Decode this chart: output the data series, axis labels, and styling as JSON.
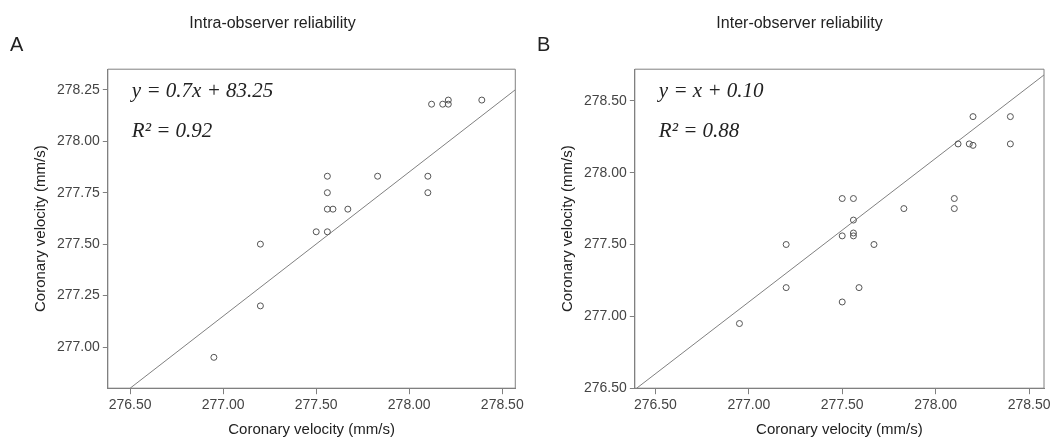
{
  "chart_data": [
    {
      "type": "scatter",
      "title": "Intra-observer reliability",
      "xlabel": "Coronary velocity (mm/s)",
      "ylabel": "Coronary velocity (mm/s)",
      "annotations": [
        "A",
        "y = 0.7x + 83.25",
        "R² = 0.92"
      ],
      "series": [
        {
          "color": "#555555",
          "marker": "circle",
          "x": [
            276.95,
            277.2,
            277.2,
            277.5,
            277.56,
            277.56,
            277.56,
            277.59,
            277.56,
            277.67,
            277.83,
            278.1,
            278.1,
            278.12,
            278.18,
            278.21,
            278.21,
            278.39
          ],
          "values": [
            276.95,
            277.5,
            277.2,
            277.56,
            277.83,
            277.75,
            277.67,
            277.67,
            277.56,
            277.67,
            277.83,
            277.83,
            277.75,
            278.18,
            278.18,
            278.2,
            278.18,
            278.2
          ]
        },
        {
          "type": "line",
          "color": "#808080",
          "marker": "none",
          "x": [
            276.5,
            278.57
          ],
          "values": [
            276.8,
            278.25
          ]
        }
      ],
      "xlim": [
        276.38,
        278.57
      ],
      "ylim": [
        276.8,
        278.35
      ],
      "xticks": [
        {
          "value": 276.5,
          "label": "276.50"
        },
        {
          "value": 277,
          "label": "277.00"
        },
        {
          "value": 277.5,
          "label": "277.50"
        },
        {
          "value": 278,
          "label": "278.00"
        },
        {
          "value": 278.5,
          "label": "278.50"
        }
      ],
      "yticks": [
        {
          "value": 277,
          "label": "277.00"
        },
        277.25,
        {
          "value": 277.5,
          "label": "277.50"
        },
        277.75,
        {
          "value": 278,
          "label": "278.00"
        },
        278.25
      ],
      "grid": false
    },
    {
      "type": "scatter",
      "title": "Inter-observer reliability",
      "xlabel": "Coronary velocity (mm/s)",
      "ylabel": "Coronary velocity (mm/s)",
      "annotations": [
        "B",
        "y = x + 0.10",
        "R² = 0.88"
      ],
      "series": [
        {
          "color": "#555555",
          "marker": "circle",
          "x": [
            276.95,
            277.2,
            277.2,
            277.5,
            277.5,
            277.5,
            277.56,
            277.56,
            277.56,
            277.56,
            277.59,
            277.67,
            277.83,
            278.1,
            278.1,
            278.12,
            278.18,
            278.2,
            278.2,
            278.4,
            278.4
          ],
          "values": [
            276.95,
            277.5,
            277.2,
            277.82,
            277.56,
            277.1,
            277.82,
            277.67,
            277.58,
            277.56,
            277.2,
            277.5,
            277.75,
            277.82,
            277.75,
            278.2,
            278.2,
            278.19,
            278.39,
            278.39,
            278.2
          ]
        },
        {
          "type": "line",
          "color": "#808080",
          "marker": "none",
          "x": [
            276.4,
            278.58
          ],
          "values": [
            276.5,
            278.68
          ]
        }
      ],
      "xlim": [
        276.39,
        278.58
      ],
      "ylim": [
        276.5,
        278.72
      ],
      "xticks": [
        {
          "value": 276.5,
          "label": "276.50"
        },
        {
          "value": 277,
          "label": "277.00"
        },
        {
          "value": 277.5,
          "label": "277.50"
        },
        {
          "value": 278,
          "label": "278.00"
        },
        {
          "value": 278.5,
          "label": "278.50"
        }
      ],
      "yticks": [
        {
          "value": 276.5,
          "label": "276.50"
        },
        {
          "value": 277,
          "label": "277.00"
        },
        {
          "value": 277.5,
          "label": "277.50"
        },
        {
          "value": 278,
          "label": "278.00"
        },
        {
          "value": 278.5,
          "label": "278.50"
        }
      ],
      "grid": false
    }
  ]
}
